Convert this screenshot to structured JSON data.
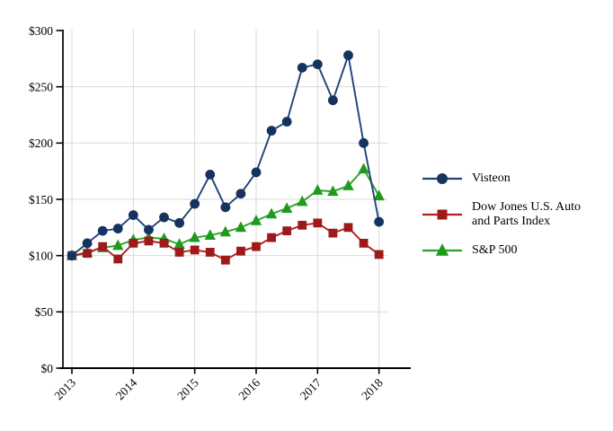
{
  "figure": {
    "background": "#ffffff",
    "axis_color": "#000000",
    "grid_color": "#d9d9d9"
  },
  "chart_data": {
    "type": "line",
    "title": "",
    "xlabel": "",
    "ylabel": "",
    "grid": true,
    "legend_position": "right",
    "sampling": "quarterly",
    "x_axis": {
      "tick_labels": [
        "2013",
        "2014",
        "2015",
        "2016",
        "2017",
        "2018"
      ],
      "label_rotation_deg": 45
    },
    "y_axis": {
      "tick_labels": [
        "$0",
        "$50",
        "$100",
        "$150",
        "$200",
        "$250",
        "$300"
      ],
      "min": 0,
      "max": 300,
      "step": 50,
      "unit": "$"
    },
    "series": [
      {
        "name": "Visteon",
        "marker": "circle",
        "line_color": "#1e4476",
        "marker_color": "#14335e",
        "values": [
          100,
          111,
          122,
          124,
          136,
          123,
          134,
          129,
          146,
          172,
          143,
          155,
          174,
          211,
          219,
          267,
          270,
          238,
          278,
          200,
          130
        ]
      },
      {
        "name": "Dow Jones U.S. Auto and Parts Index",
        "marker": "square",
        "line_color": "#b01e1e",
        "marker_color": "#9e1a1a",
        "values": [
          100,
          102,
          108,
          97,
          111,
          113,
          111,
          103,
          105,
          103,
          96,
          104,
          108,
          116,
          122,
          127,
          129,
          120,
          125,
          111,
          101
        ]
      },
      {
        "name": "S&P 500",
        "marker": "triangle",
        "line_color": "#2ca02c",
        "marker_color": "#1e9b1e",
        "values": [
          100,
          103,
          107,
          109,
          114,
          116,
          115,
          110,
          116,
          118,
          121,
          125,
          131,
          137,
          142,
          148,
          158,
          157,
          162,
          177,
          153
        ]
      }
    ]
  }
}
